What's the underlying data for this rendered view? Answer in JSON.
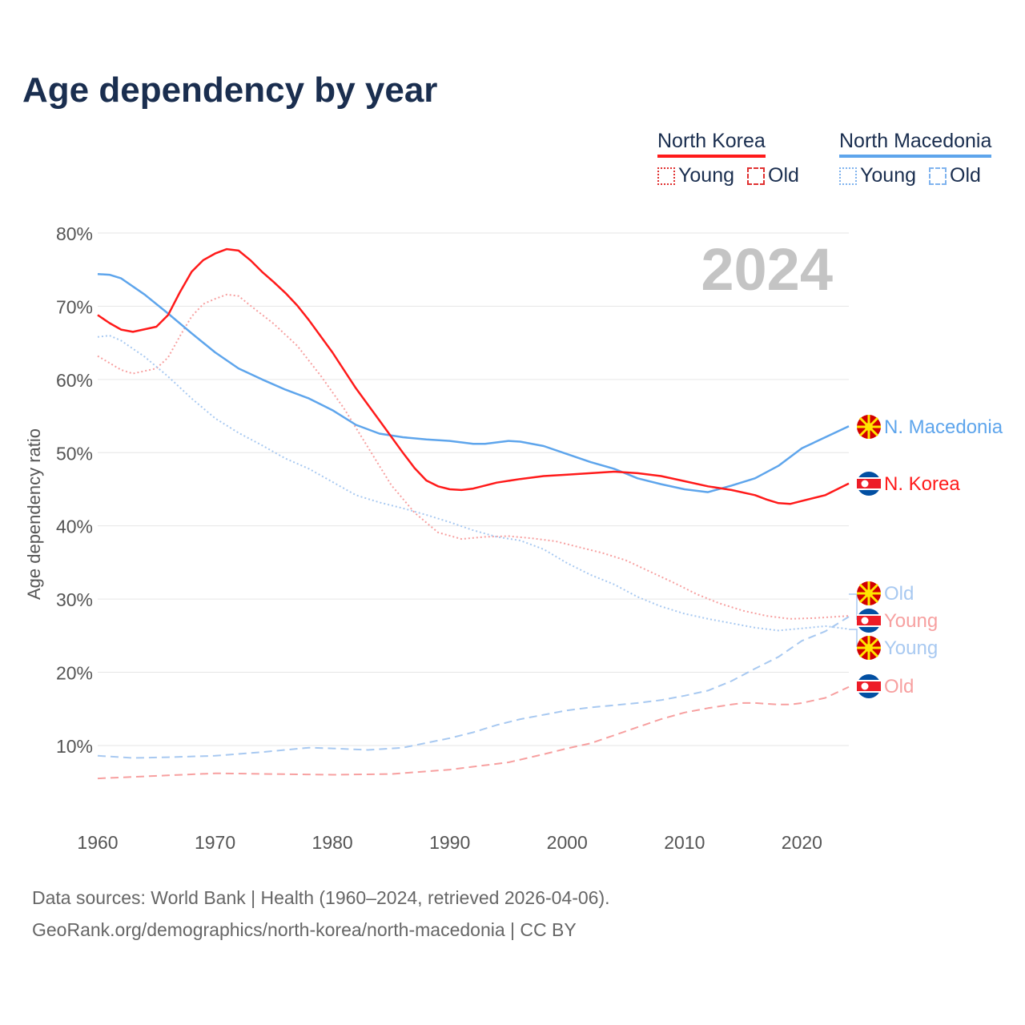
{
  "title": "Age dependency by year",
  "legend": {
    "groups": [
      {
        "name": "North Korea",
        "color": "#ff1a1a",
        "light": "#f7a0a0",
        "items": [
          "Young",
          "Old"
        ]
      },
      {
        "name": "North Macedonia",
        "color": "#5ea5ec",
        "light": "#a8c9f1",
        "items": [
          "Young",
          "Old"
        ]
      }
    ]
  },
  "year_badge": "2024",
  "source_line1": "Data sources: World Bank | Health (1960–2024, retrieved 2026-04-06).",
  "source_line2": "GeoRank.org/demographics/north-korea/north-macedonia | CC BY",
  "end_labels": {
    "nm_total": "N. Macedonia",
    "nk_total": "N. Korea",
    "nm_old": "Old",
    "nk_young": "Young",
    "nm_young": "Young",
    "nk_old": "Old"
  },
  "chart_data": {
    "type": "line",
    "title": "Age dependency by year",
    "xlabel": "",
    "ylabel": "Age dependency ratio",
    "xlim": [
      1960,
      2024
    ],
    "ylim": [
      0,
      80
    ],
    "xticks": [
      1960,
      1970,
      1980,
      1990,
      2000,
      2010,
      2020
    ],
    "xtick_labels": [
      "1960",
      "1970",
      "1980",
      "1990",
      "2000",
      "2010",
      "2020"
    ],
    "yticks": [
      10,
      20,
      30,
      40,
      50,
      60,
      70,
      80
    ],
    "ytick_labels": [
      "10%",
      "20%",
      "30%",
      "40%",
      "50%",
      "60%",
      "70%",
      "80%"
    ],
    "grid": true,
    "legend_position": "top-right",
    "series": [
      {
        "key": "nk_total",
        "name": "North Korea",
        "style": "solid",
        "color": "#ff1a1a",
        "x": [
          1960,
          1961,
          1962,
          1963,
          1965,
          1966,
          1967,
          1968,
          1969,
          1970,
          1971,
          1972,
          1973,
          1974,
          1975,
          1976,
          1977,
          1978,
          1980,
          1982,
          1984,
          1986,
          1987,
          1988,
          1989,
          1990,
          1991,
          1992,
          1994,
          1996,
          1998,
          2000,
          2002,
          2004,
          2006,
          2008,
          2010,
          2012,
          2014,
          2016,
          2017,
          2018,
          2019,
          2020,
          2022,
          2024
        ],
        "y": [
          68.8,
          67.7,
          66.8,
          66.5,
          67.2,
          68.8,
          71.9,
          74.7,
          76.3,
          77.2,
          77.8,
          77.6,
          76.3,
          74.7,
          73.3,
          71.8,
          70.1,
          68.1,
          63.7,
          58.8,
          54.4,
          50.0,
          47.9,
          46.2,
          45.4,
          45.0,
          44.9,
          45.1,
          45.9,
          46.4,
          46.8,
          47.0,
          47.2,
          47.4,
          47.2,
          46.8,
          46.1,
          45.4,
          44.9,
          44.2,
          43.6,
          43.1,
          43.0,
          43.4,
          44.2,
          45.8
        ]
      },
      {
        "key": "nk_young",
        "name": "North Korea Young",
        "style": "dotted",
        "color": "#f7a0a0",
        "x": [
          1960,
          1962,
          1963,
          1965,
          1966,
          1967,
          1968,
          1969,
          1970,
          1971,
          1972,
          1973,
          1975,
          1977,
          1979,
          1981,
          1983,
          1985,
          1987,
          1989,
          1991,
          1993,
          1995,
          1997,
          1999,
          2001,
          2003,
          2005,
          2007,
          2009,
          2011,
          2013,
          2015,
          2017,
          2019,
          2021,
          2024
        ],
        "y": [
          63.2,
          61.3,
          60.8,
          61.5,
          63.0,
          65.9,
          68.6,
          70.3,
          71.0,
          71.6,
          71.4,
          70.1,
          67.6,
          64.6,
          60.5,
          56.0,
          50.8,
          45.6,
          41.8,
          39.1,
          38.2,
          38.5,
          38.6,
          38.3,
          37.9,
          37.1,
          36.3,
          35.3,
          33.8,
          32.3,
          30.7,
          29.4,
          28.4,
          27.7,
          27.3,
          27.4,
          27.7
        ]
      },
      {
        "key": "nk_old",
        "name": "North Korea Old",
        "style": "dashed",
        "color": "#f7a0a0",
        "x": [
          1960,
          1970,
          1980,
          1985,
          1990,
          1995,
          1998,
          2000,
          2002,
          2004,
          2006,
          2008,
          2010,
          2012,
          2014,
          2015,
          2016,
          2018,
          2019,
          2020,
          2022,
          2024
        ],
        "y": [
          5.5,
          6.2,
          6.0,
          6.1,
          6.7,
          7.7,
          8.8,
          9.6,
          10.3,
          11.4,
          12.5,
          13.6,
          14.5,
          15.1,
          15.6,
          15.8,
          15.8,
          15.6,
          15.6,
          15.8,
          16.5,
          18.0
        ]
      },
      {
        "key": "nm_total",
        "name": "North Macedonia",
        "style": "solid",
        "color": "#5ea5ec",
        "x": [
          1960,
          1961,
          1962,
          1964,
          1966,
          1968,
          1970,
          1972,
          1974,
          1976,
          1978,
          1980,
          1982,
          1984,
          1986,
          1988,
          1990,
          1992,
          1993,
          1995,
          1996,
          1998,
          2000,
          2002,
          2004,
          2006,
          2008,
          2010,
          2012,
          2014,
          2016,
          2018,
          2020,
          2022,
          2024
        ],
        "y": [
          74.4,
          74.3,
          73.8,
          71.6,
          69.0,
          66.3,
          63.7,
          61.5,
          60.0,
          58.6,
          57.4,
          55.8,
          53.8,
          52.6,
          52.1,
          51.8,
          51.6,
          51.2,
          51.2,
          51.6,
          51.5,
          50.9,
          49.8,
          48.7,
          47.8,
          46.5,
          45.7,
          45.0,
          44.6,
          45.5,
          46.5,
          48.2,
          50.6,
          52.1,
          53.6
        ]
      },
      {
        "key": "nm_young",
        "name": "North Macedonia Young",
        "style": "dotted",
        "color": "#a8c9f1",
        "x": [
          1960,
          1961,
          1962,
          1964,
          1966,
          1968,
          1970,
          1972,
          1974,
          1976,
          1978,
          1980,
          1982,
          1984,
          1986,
          1988,
          1990,
          1992,
          1994,
          1996,
          1998,
          2000,
          2002,
          2004,
          2006,
          2008,
          2010,
          2012,
          2014,
          2016,
          2018,
          2020,
          2022,
          2024
        ],
        "y": [
          65.8,
          66.0,
          65.3,
          63.1,
          60.4,
          57.4,
          54.7,
          52.7,
          51.0,
          49.2,
          47.8,
          46.0,
          44.2,
          43.2,
          42.4,
          41.5,
          40.5,
          39.4,
          38.5,
          38.0,
          36.8,
          34.9,
          33.3,
          32.0,
          30.3,
          29.0,
          28.0,
          27.3,
          26.7,
          26.1,
          25.7,
          26.0,
          26.3,
          25.9
        ]
      },
      {
        "key": "nm_old",
        "name": "North Macedonia Old",
        "style": "dashed",
        "color": "#a8c9f1",
        "x": [
          1960,
          1963,
          1966,
          1970,
          1974,
          1978,
          1980,
          1983,
          1986,
          1990,
          1992,
          1994,
          1996,
          2000,
          2002,
          2004,
          2006,
          2008,
          2010,
          2012,
          2014,
          2016,
          2018,
          2020,
          2022,
          2024
        ],
        "y": [
          8.6,
          8.3,
          8.4,
          8.6,
          9.1,
          9.7,
          9.6,
          9.4,
          9.7,
          11.0,
          11.8,
          12.8,
          13.6,
          14.8,
          15.2,
          15.5,
          15.8,
          16.2,
          16.8,
          17.5,
          18.8,
          20.5,
          22.1,
          24.3,
          25.6,
          27.6
        ]
      }
    ]
  }
}
